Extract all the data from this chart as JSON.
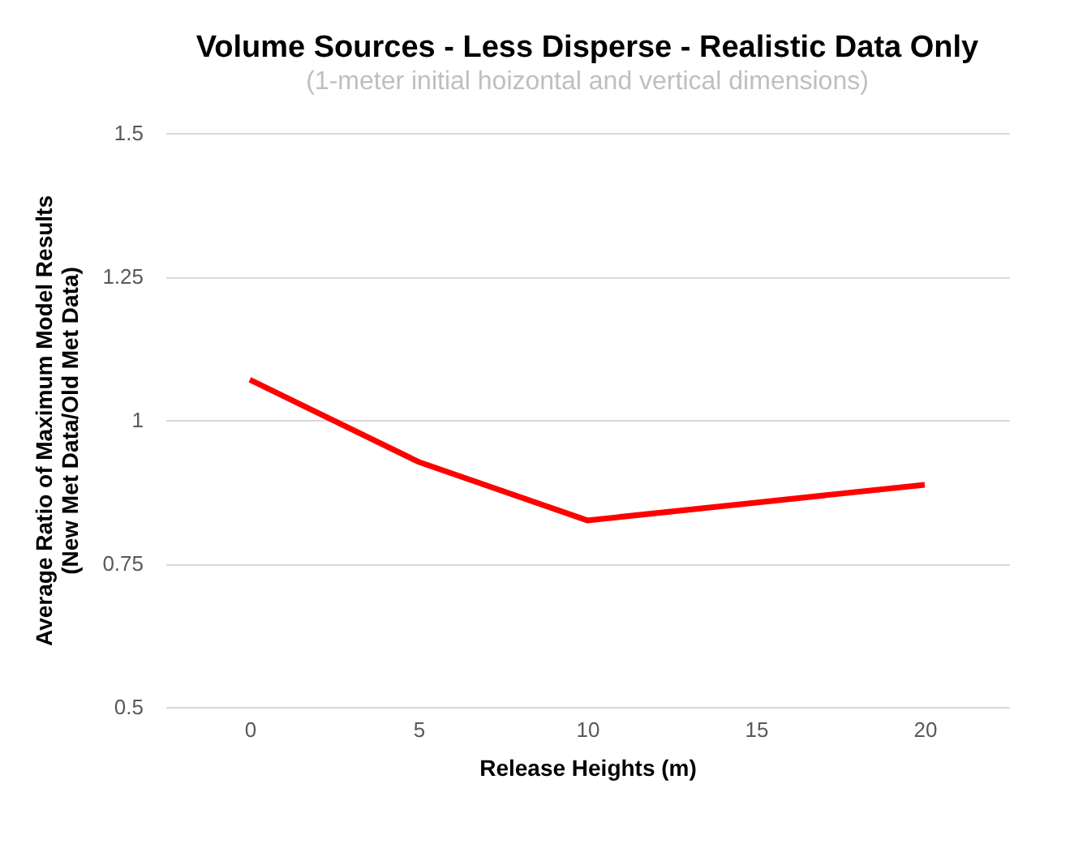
{
  "chart_data": {
    "type": "line",
    "title": "Volume Sources - Less Disperse - Realistic Data Only",
    "subtitle": "(1-meter initial hoizontal and vertical dimensions)",
    "xlabel": "Release Heights (m)",
    "ylabel": "Average Ratio of Maximum Model Results\n(New Met Data/Old Met Data)",
    "categories": [
      "0",
      "5",
      "10",
      "15",
      "20"
    ],
    "series": [
      {
        "color": "#ff0000",
        "values": [
          1.07,
          0.927,
          0.825,
          0.856,
          0.887
        ]
      }
    ],
    "ylim": [
      0.5,
      1.5
    ],
    "yticks": [
      0.5,
      0.75,
      1,
      1.25,
      1.5
    ],
    "grid": "y",
    "legend": false,
    "marker": "none",
    "line_style": "solid"
  }
}
